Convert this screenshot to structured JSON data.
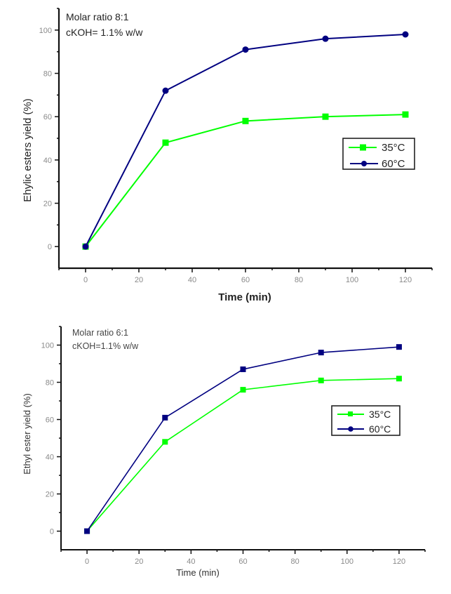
{
  "chart_data": [
    {
      "type": "line",
      "title": "",
      "annotation": [
        "Molar ratio 8:1",
        "cKOH= 1.1% w/w"
      ],
      "xlabel": "Time (min)",
      "ylabel": "Ehylic esters yield (%)",
      "xlim": [
        -10,
        130
      ],
      "ylim": [
        -10,
        110
      ],
      "xticks": [
        0,
        20,
        40,
        60,
        80,
        100,
        120
      ],
      "yticks": [
        0,
        20,
        40,
        60,
        80,
        100
      ],
      "grid": false,
      "legend_position": "center-right",
      "x": [
        0,
        30,
        60,
        90,
        120
      ],
      "series": [
        {
          "name": "35°C",
          "color": "#00ff00",
          "marker": "square",
          "values": [
            0,
            48,
            58,
            60,
            61
          ]
        },
        {
          "name": "60°C",
          "color": "#000080",
          "marker": "circle",
          "values": [
            0,
            72,
            91,
            96,
            98
          ]
        }
      ]
    },
    {
      "type": "line",
      "title": "",
      "annotation": [
        "Molar ratio 6:1",
        "cKOH=1.1% w/w"
      ],
      "xlabel": "Time (min)",
      "ylabel": "Ethyl ester yield (%)",
      "xlim": [
        -10,
        130
      ],
      "ylim": [
        -10,
        110
      ],
      "xticks": [
        0,
        20,
        40,
        60,
        80,
        100,
        120
      ],
      "yticks": [
        0,
        20,
        40,
        60,
        80,
        100
      ],
      "grid": false,
      "legend_position": "center-right",
      "x": [
        0,
        30,
        60,
        90,
        120
      ],
      "series": [
        {
          "name": "35°C",
          "color": "#00ff00",
          "marker": "square",
          "values": [
            0,
            48,
            76,
            81,
            82
          ]
        },
        {
          "name": "60°C",
          "color": "#000080",
          "marker": "square",
          "values": [
            0,
            61,
            87,
            96,
            99
          ]
        }
      ]
    }
  ]
}
